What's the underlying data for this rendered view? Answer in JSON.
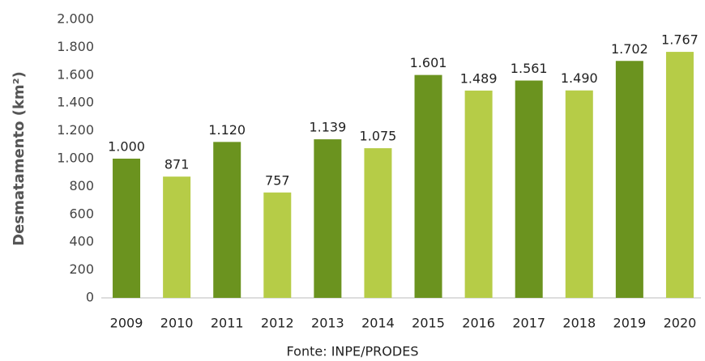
{
  "chart_data": {
    "type": "bar",
    "y_label": "Desmatamento (km²)",
    "source": "Fonte: INPE/PRODES",
    "categories": [
      "2009",
      "2010",
      "2011",
      "2012",
      "2013",
      "2014",
      "2015",
      "2016",
      "2017",
      "2018",
      "2019",
      "2020"
    ],
    "values": [
      1000,
      871,
      1120,
      757,
      1139,
      1075,
      1601,
      1489,
      1561,
      1490,
      1702,
      1767
    ],
    "value_labels": [
      "1.000",
      "871",
      "1.120",
      "757",
      "1.139",
      "1.075",
      "1.601",
      "1.489",
      "1.561",
      "1.490",
      "1.702",
      "1.767"
    ],
    "colors": [
      "#6b931f",
      "#b6cc47"
    ],
    "ylim": [
      0,
      2000
    ],
    "yticks": [
      0,
      200,
      400,
      600,
      800,
      {
        "value": 1000,
        "label": "1.000"
      },
      {
        "value": 1200,
        "label": "1.200"
      },
      {
        "value": 1400,
        "label": "1.400"
      },
      {
        "value": 1600,
        "label": "1.600"
      },
      {
        "value": 1800,
        "label": "1.800"
      },
      {
        "value": 2000,
        "label": "2.000"
      }
    ],
    "grid": false
  }
}
